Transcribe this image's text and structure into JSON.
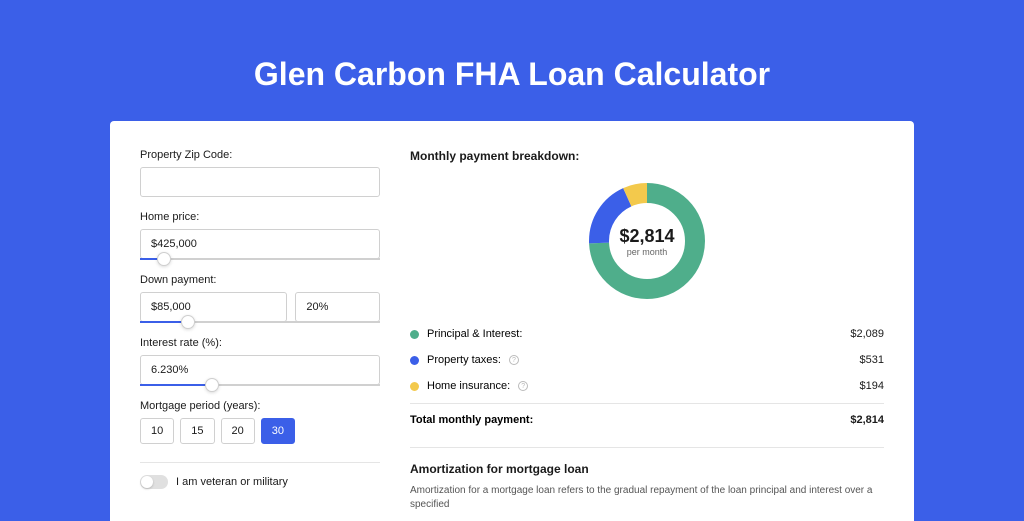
{
  "header": {
    "title": "Glen Carbon FHA Loan Calculator"
  },
  "colors": {
    "background": "#3B5FE8",
    "panel": "#ffffff",
    "principal": "#4FAE8B",
    "taxes": "#3B5FE8",
    "insurance": "#F3C94C",
    "border": "#d0d0d0",
    "text": "#1a1a1a"
  },
  "form": {
    "zip": {
      "label": "Property Zip Code:",
      "value": ""
    },
    "home_price": {
      "label": "Home price:",
      "value": "$425,000",
      "slider_pct": 10
    },
    "down_payment": {
      "label": "Down payment:",
      "amount": "$85,000",
      "pct": "20%",
      "slider_pct": 20
    },
    "interest_rate": {
      "label": "Interest rate (%):",
      "value": "6.230%",
      "slider_pct": 30
    },
    "period": {
      "label": "Mortgage period (years):",
      "options": [
        "10",
        "15",
        "20",
        "30"
      ],
      "selected": "30"
    },
    "veteran": {
      "label": "I am veteran or military",
      "checked": false
    }
  },
  "breakdown": {
    "title": "Monthly payment breakdown:",
    "center_amount": "$2,814",
    "center_sub": "per month",
    "donut": {
      "radius": 48,
      "stroke": 20,
      "slices": [
        {
          "key": "principal",
          "pct": 74.2,
          "color": "#4FAE8B"
        },
        {
          "key": "taxes",
          "pct": 18.9,
          "color": "#3B5FE8"
        },
        {
          "key": "insurance",
          "pct": 6.9,
          "color": "#F3C94C"
        }
      ]
    },
    "items": [
      {
        "label": "Principal & Interest:",
        "value": "$2,089",
        "color": "#4FAE8B",
        "info": false
      },
      {
        "label": "Property taxes:",
        "value": "$531",
        "color": "#3B5FE8",
        "info": true
      },
      {
        "label": "Home insurance:",
        "value": "$194",
        "color": "#F3C94C",
        "info": true
      }
    ],
    "total": {
      "label": "Total monthly payment:",
      "value": "$2,814"
    }
  },
  "amortization": {
    "title": "Amortization for mortgage loan",
    "text": "Amortization for a mortgage loan refers to the gradual repayment of the loan principal and interest over a specified"
  }
}
